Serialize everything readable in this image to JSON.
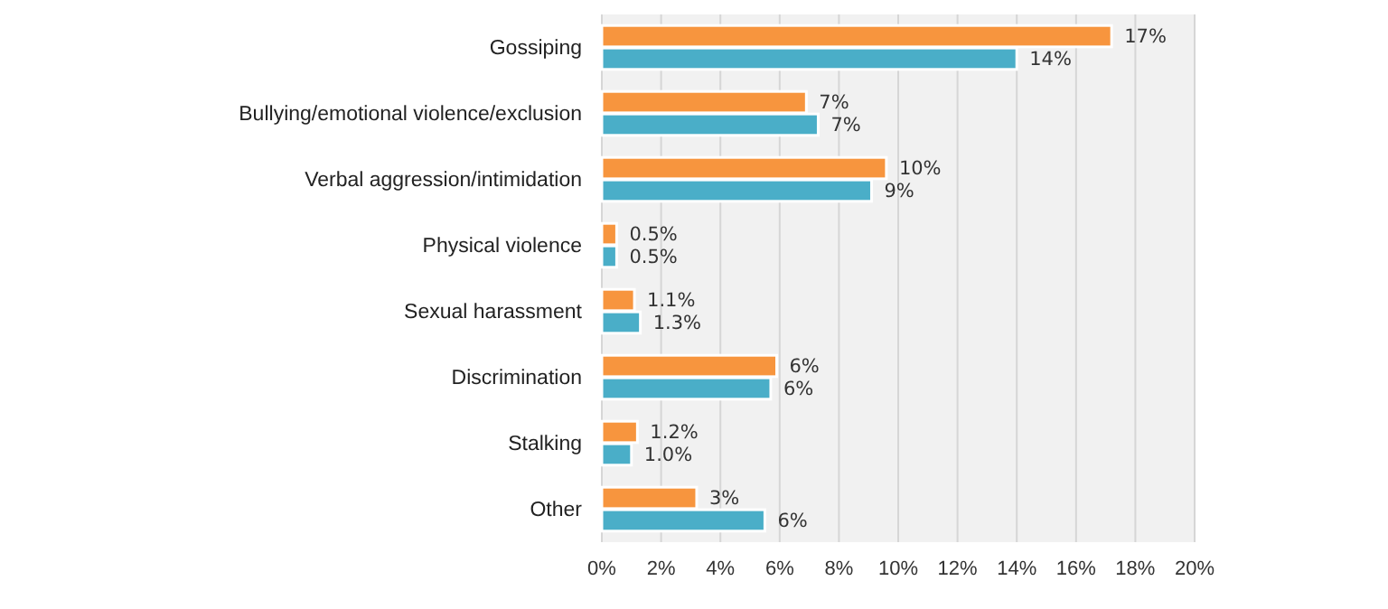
{
  "chart_data": {
    "type": "bar",
    "orientation": "horizontal",
    "categories": [
      "Gossiping",
      "Bullying/emotional violence/exclusion",
      "Verbal aggression/intimidation",
      "Physical violence",
      "Sexual harassment",
      "Discrimination",
      "Stalking",
      "Other"
    ],
    "series": [
      {
        "color": "#f7953e",
        "values": [
          17.2,
          6.9,
          9.6,
          0.5,
          1.1,
          5.9,
          1.2,
          3.2
        ],
        "value_labels": [
          "17%",
          "7%",
          "10%",
          "0.5%",
          "1.1%",
          "6%",
          "1.2%",
          "3%"
        ]
      },
      {
        "color": "#4aaec8",
        "values": [
          14.0,
          7.3,
          9.1,
          0.5,
          1.3,
          5.7,
          1.0,
          5.5
        ],
        "value_labels": [
          "14%",
          "7%",
          "9%",
          "0.5%",
          "1.3%",
          "6%",
          "1.0%",
          "6%"
        ]
      }
    ],
    "xlim": [
      0,
      20
    ],
    "xticks": [
      {
        "value": 0,
        "label": "0%"
      },
      {
        "value": 2,
        "label": "2%"
      },
      {
        "value": 4,
        "label": "4%"
      },
      {
        "value": 6,
        "label": "6%"
      },
      {
        "value": 8,
        "label": "8%"
      },
      {
        "value": 10,
        "label": "10%"
      },
      {
        "value": 12,
        "label": "12%"
      },
      {
        "value": 14,
        "label": "14%"
      },
      {
        "value": 16,
        "label": "16%"
      },
      {
        "value": 18,
        "label": "18%"
      },
      {
        "value": 20,
        "label": "20%"
      }
    ],
    "grid": "x"
  }
}
